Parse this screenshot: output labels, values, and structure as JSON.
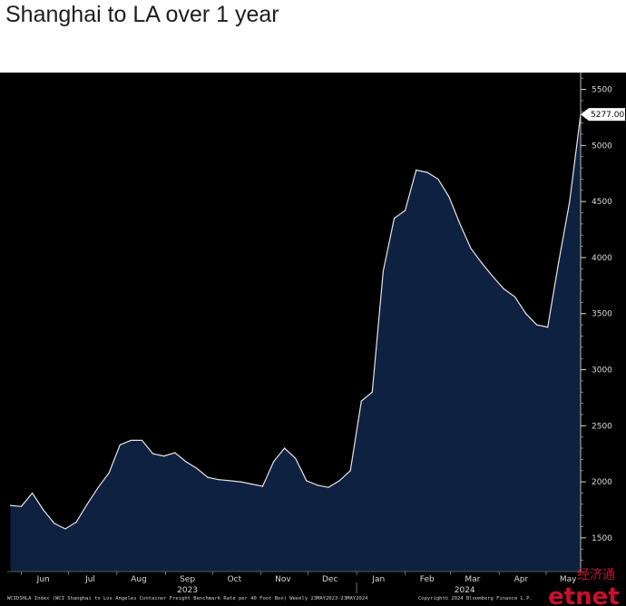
{
  "header": {
    "title": "Shanghai to LA over 1 year"
  },
  "chart_data": {
    "type": "area",
    "title": "Shanghai to LA over 1 year",
    "xlabel": "",
    "ylabel": "",
    "ylim": [
      1200,
      5650
    ],
    "y_ticks": [
      1500,
      2000,
      2500,
      3000,
      3500,
      4000,
      4500,
      5000,
      5500
    ],
    "y_tick_labels": [
      "1500",
      "2000",
      "2500",
      "3000",
      "3500",
      "4000",
      "4500",
      "5000",
      "5500"
    ],
    "x_months": [
      "Jun",
      "Jul",
      "Aug",
      "Sep",
      "Oct",
      "Nov",
      "Dec",
      "Jan",
      "Feb",
      "Mar",
      "Apr",
      "May"
    ],
    "x_years": [
      "2023",
      "2024"
    ],
    "x_range": [
      "2023-05-23",
      "2024-05-23"
    ],
    "last_value_label": "5277.00",
    "grid": false,
    "colors": {
      "fill": "#0e2141",
      "line": "#e6e6e6",
      "background": "#000000"
    },
    "series": [
      {
        "x": [
          "2023-05-25",
          "2023-06-01",
          "2023-06-08",
          "2023-06-15",
          "2023-06-22",
          "2023-06-29",
          "2023-07-06",
          "2023-07-13",
          "2023-07-20",
          "2023-07-27",
          "2023-08-03",
          "2023-08-10",
          "2023-08-17",
          "2023-08-24",
          "2023-08-31",
          "2023-09-07",
          "2023-09-14",
          "2023-09-21",
          "2023-09-28",
          "2023-10-05",
          "2023-10-12",
          "2023-10-19",
          "2023-10-26",
          "2023-11-02",
          "2023-11-09",
          "2023-11-16",
          "2023-11-23",
          "2023-11-30",
          "2023-12-07",
          "2023-12-14",
          "2023-12-21",
          "2023-12-28",
          "2024-01-04",
          "2024-01-11",
          "2024-01-18",
          "2024-01-25",
          "2024-02-01",
          "2024-02-08",
          "2024-02-15",
          "2024-02-22",
          "2024-02-29",
          "2024-03-07",
          "2024-03-14",
          "2024-03-21",
          "2024-03-28",
          "2024-04-04",
          "2024-04-11",
          "2024-04-18",
          "2024-04-25",
          "2024-05-02",
          "2024-05-09",
          "2024-05-16",
          "2024-05-23"
        ],
        "values": [
          1790,
          1780,
          1900,
          1750,
          1630,
          1580,
          1640,
          1800,
          1950,
          2080,
          2330,
          2370,
          2370,
          2250,
          2230,
          2260,
          2180,
          2120,
          2040,
          2020,
          2010,
          2000,
          1980,
          1960,
          2180,
          2300,
          2210,
          2010,
          1970,
          1950,
          2010,
          2100,
          2720,
          2800,
          3880,
          4350,
          4420,
          4780,
          4760,
          4700,
          4540,
          4300,
          4080,
          3950,
          3830,
          3720,
          3650,
          3500,
          3400,
          3380,
          3960,
          4500,
          5277
        ]
      }
    ]
  },
  "footer": {
    "left": "WCIDSHLA Index (WCI Shanghai to Los Angeles Container Freight Benchmark Rate per 40 Foot Box) Weekly 23MAY2023-23MAY2024",
    "right": "Copyright© 2024 Bloomberg Finance L.P."
  },
  "watermark": {
    "text": "etnet",
    "sub": "经济通"
  }
}
